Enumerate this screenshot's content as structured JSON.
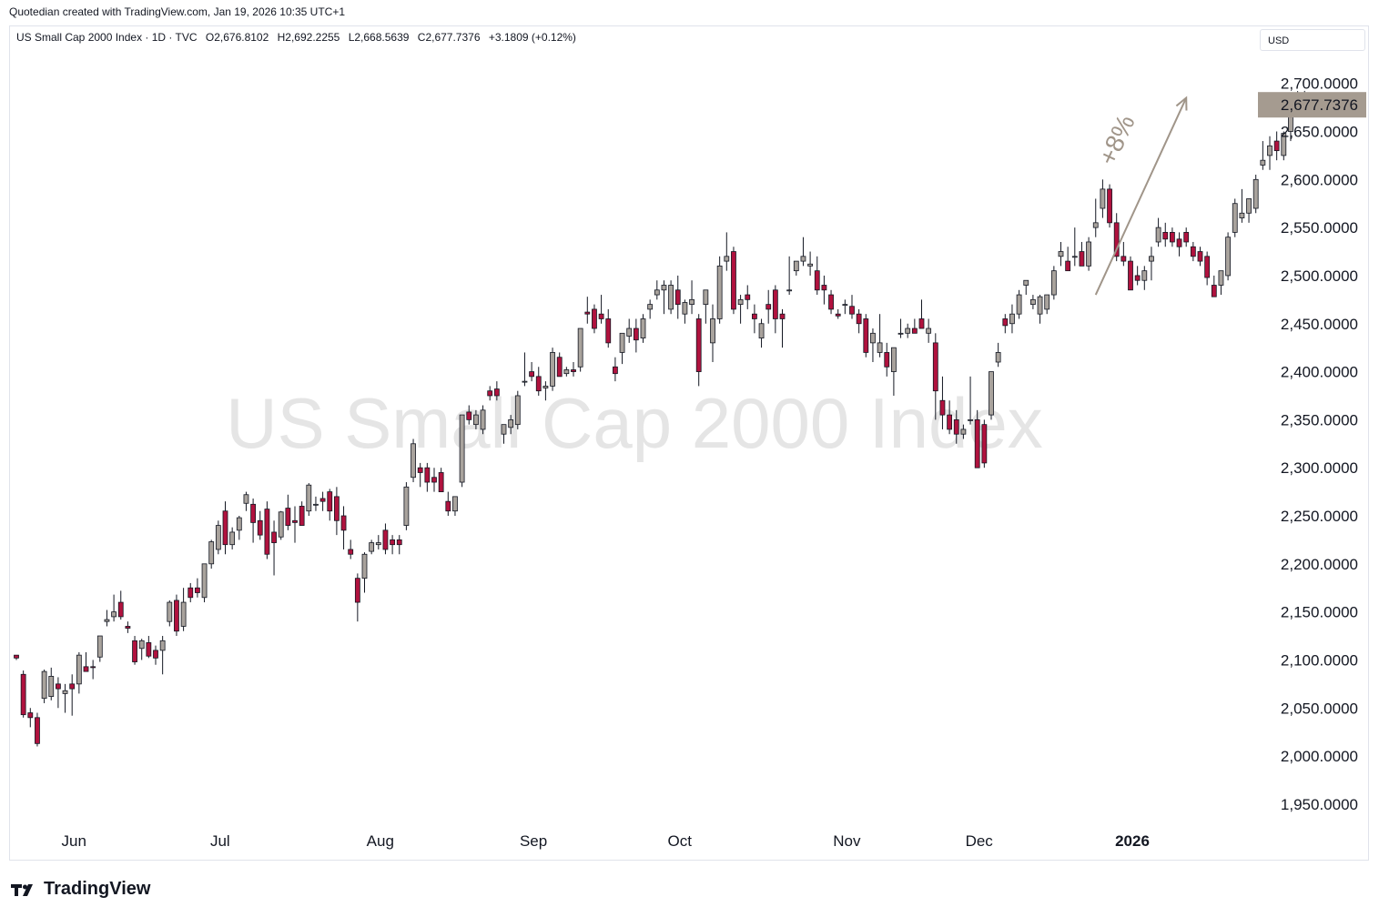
{
  "header": {
    "caption": "Quotedian created with TradingView.com, Jan 19, 2026 10:35 UTC+1"
  },
  "legend": {
    "symbol": "US Small Cap 2000 Index · 1D · TVC",
    "open": "O2,676.8102",
    "high": "H2,692.2255",
    "low": "L2,668.5639",
    "close": "C2,677.7376",
    "change": "+3.1809 (+0.12%)"
  },
  "currency": "USD",
  "footer": {
    "brand": "TradingView"
  },
  "colors": {
    "up": "#a9a39d",
    "down": "#b0123e",
    "wick": "#131722",
    "annotation": "#a09589",
    "price_tag": "#a59b90"
  },
  "chart_data": {
    "type": "candlestick",
    "watermark": "US Small Cap 2000 Index",
    "ylim": [
      1930,
      2730
    ],
    "y_ticks": [
      1950,
      2000,
      2050,
      2100,
      2150,
      2200,
      2250,
      2300,
      2350,
      2400,
      2450,
      2500,
      2550,
      2600,
      2650,
      2700
    ],
    "y_tick_labels": [
      "1,950.0000",
      "2,000.0000",
      "2,050.0000",
      "2,100.0000",
      "2,150.0000",
      "2,200.0000",
      "2,250.0000",
      "2,300.0000",
      "2,350.0000",
      "2,400.0000",
      "2,450.0000",
      "2,500.0000",
      "2,550.0000",
      "2,600.0000",
      "2,650.0000",
      "2,700.0000"
    ],
    "x_labels": [
      {
        "label": "Jun",
        "index": 8,
        "bold": false
      },
      {
        "label": "Jul",
        "index": 29,
        "bold": false
      },
      {
        "label": "Aug",
        "index": 52,
        "bold": false
      },
      {
        "label": "Sep",
        "index": 74,
        "bold": false
      },
      {
        "label": "Oct",
        "index": 95,
        "bold": false
      },
      {
        "label": "Nov",
        "index": 119,
        "bold": false
      },
      {
        "label": "Dec",
        "index": 138,
        "bold": false
      },
      {
        "label": "2026",
        "index": 160,
        "bold": true
      }
    ],
    "last_price": 2677.7376,
    "last_price_label": "2,677.7376",
    "annotation": {
      "text": "+8%",
      "from": {
        "index": 155,
        "price": 2480
      },
      "to": {
        "index": 168,
        "price": 2685
      }
    },
    "candles": [
      [
        2105,
        2105,
        2100,
        2102
      ],
      [
        2085,
        2089,
        2040,
        2043
      ],
      [
        2045,
        2050,
        2030,
        2040
      ],
      [
        2040,
        2045,
        2010,
        2013
      ],
      [
        2060,
        2090,
        2055,
        2088
      ],
      [
        2062,
        2092,
        2058,
        2083
      ],
      [
        2075,
        2082,
        2050,
        2070
      ],
      [
        2065,
        2075,
        2045,
        2068
      ],
      [
        2075,
        2085,
        2042,
        2070
      ],
      [
        2075,
        2108,
        2065,
        2105
      ],
      [
        2093,
        2108,
        2088,
        2088
      ],
      [
        2093,
        2100,
        2080,
        2092
      ],
      [
        2103,
        2125,
        2098,
        2125
      ],
      [
        2140,
        2152,
        2135,
        2142
      ],
      [
        2145,
        2168,
        2140,
        2150
      ],
      [
        2160,
        2172,
        2142,
        2145
      ],
      [
        2135,
        2140,
        2128,
        2133
      ],
      [
        2120,
        2125,
        2095,
        2098
      ],
      [
        2112,
        2122,
        2100,
        2120
      ],
      [
        2118,
        2125,
        2102,
        2104
      ],
      [
        2110,
        2115,
        2095,
        2102
      ],
      [
        2110,
        2125,
        2085,
        2120
      ],
      [
        2140,
        2162,
        2135,
        2160
      ],
      [
        2162,
        2168,
        2125,
        2130
      ],
      [
        2135,
        2175,
        2130,
        2160
      ],
      [
        2175,
        2180,
        2160,
        2165
      ],
      [
        2175,
        2185,
        2165,
        2170
      ],
      [
        2165,
        2200,
        2160,
        2200
      ],
      [
        2200,
        2225,
        2195,
        2223
      ],
      [
        2215,
        2245,
        2210,
        2240
      ],
      [
        2255,
        2265,
        2210,
        2220
      ],
      [
        2220,
        2238,
        2215,
        2233
      ],
      [
        2235,
        2250,
        2225,
        2248
      ],
      [
        2263,
        2275,
        2255,
        2272
      ],
      [
        2262,
        2268,
        2222,
        2243
      ],
      [
        2245,
        2255,
        2225,
        2230
      ],
      [
        2257,
        2265,
        2205,
        2210
      ],
      [
        2233,
        2245,
        2188,
        2222
      ],
      [
        2228,
        2255,
        2225,
        2254
      ],
      [
        2258,
        2272,
        2235,
        2240
      ],
      [
        2245,
        2260,
        2222,
        2243
      ],
      [
        2260,
        2265,
        2240,
        2240
      ],
      [
        2255,
        2284,
        2250,
        2282
      ],
      [
        2262,
        2270,
        2255,
        2262
      ],
      [
        2268,
        2275,
        2255,
        2265
      ],
      [
        2275,
        2278,
        2245,
        2255
      ],
      [
        2270,
        2280,
        2230,
        2245
      ],
      [
        2250,
        2260,
        2215,
        2235
      ],
      [
        2215,
        2225,
        2205,
        2210
      ],
      [
        2185,
        2190,
        2140,
        2160
      ],
      [
        2185,
        2212,
        2170,
        2210
      ],
      [
        2213,
        2225,
        2210,
        2222
      ],
      [
        2220,
        2230,
        2215,
        2222
      ],
      [
        2235,
        2242,
        2210,
        2215
      ],
      [
        2225,
        2230,
        2210,
        2220
      ],
      [
        2225,
        2230,
        2210,
        2220
      ],
      [
        2240,
        2285,
        2235,
        2280
      ],
      [
        2290,
        2330,
        2285,
        2325
      ],
      [
        2300,
        2305,
        2280,
        2295
      ],
      [
        2300,
        2305,
        2275,
        2285
      ],
      [
        2290,
        2300,
        2275,
        2285
      ],
      [
        2295,
        2300,
        2275,
        2275
      ],
      [
        2265,
        2275,
        2250,
        2255
      ],
      [
        2255,
        2270,
        2250,
        2270
      ],
      [
        2285,
        2355,
        2280,
        2355
      ],
      [
        2358,
        2365,
        2345,
        2350
      ],
      [
        2345,
        2360,
        2340,
        2355
      ],
      [
        2340,
        2365,
        2335,
        2360
      ],
      [
        2380,
        2385,
        2370,
        2375
      ],
      [
        2382,
        2390,
        2370,
        2375
      ],
      [
        2335,
        2345,
        2325,
        2345
      ],
      [
        2342,
        2355,
        2335,
        2350
      ],
      [
        2345,
        2380,
        2340,
        2375
      ],
      [
        2390,
        2420,
        2385,
        2390
      ],
      [
        2400,
        2410,
        2390,
        2395
      ],
      [
        2395,
        2405,
        2375,
        2380
      ],
      [
        2383,
        2390,
        2370,
        2385
      ],
      [
        2385,
        2425,
        2380,
        2420
      ],
      [
        2415,
        2420,
        2395,
        2395
      ],
      [
        2398,
        2405,
        2395,
        2402
      ],
      [
        2402,
        2410,
        2395,
        2400
      ],
      [
        2405,
        2445,
        2400,
        2445
      ],
      [
        2462,
        2478,
        2450,
        2460
      ],
      [
        2465,
        2470,
        2440,
        2445
      ],
      [
        2460,
        2480,
        2450,
        2455
      ],
      [
        2455,
        2465,
        2425,
        2430
      ],
      [
        2405,
        2415,
        2390,
        2398
      ],
      [
        2420,
        2440,
        2408,
        2440
      ],
      [
        2437,
        2455,
        2430,
        2445
      ],
      [
        2445,
        2455,
        2420,
        2433
      ],
      [
        2435,
        2460,
        2430,
        2455
      ],
      [
        2465,
        2475,
        2455,
        2470
      ],
      [
        2480,
        2495,
        2475,
        2485
      ],
      [
        2485,
        2495,
        2460,
        2490
      ],
      [
        2465,
        2495,
        2460,
        2490
      ],
      [
        2485,
        2500,
        2455,
        2470
      ],
      [
        2460,
        2475,
        2450,
        2472
      ],
      [
        2470,
        2495,
        2460,
        2475
      ],
      [
        2455,
        2460,
        2385,
        2400
      ],
      [
        2470,
        2485,
        2450,
        2485
      ],
      [
        2430,
        2470,
        2410,
        2455
      ],
      [
        2455,
        2520,
        2450,
        2510
      ],
      [
        2515,
        2545,
        2505,
        2520
      ],
      [
        2525,
        2530,
        2460,
        2465
      ],
      [
        2470,
        2480,
        2450,
        2475
      ],
      [
        2480,
        2490,
        2465,
        2475
      ],
      [
        2460,
        2470,
        2440,
        2455
      ],
      [
        2435,
        2455,
        2425,
        2450
      ],
      [
        2470,
        2485,
        2450,
        2465
      ],
      [
        2485,
        2490,
        2440,
        2455
      ],
      [
        2460,
        2465,
        2425,
        2455
      ],
      [
        2485,
        2520,
        2480,
        2485
      ],
      [
        2505,
        2515,
        2500,
        2515
      ],
      [
        2515,
        2540,
        2510,
        2520
      ],
      [
        2510,
        2525,
        2500,
        2512
      ],
      [
        2505,
        2520,
        2480,
        2485
      ],
      [
        2490,
        2500,
        2470,
        2485
      ],
      [
        2480,
        2485,
        2460,
        2465
      ],
      [
        2460,
        2465,
        2455,
        2458
      ],
      [
        2470,
        2475,
        2460,
        2470
      ],
      [
        2468,
        2480,
        2455,
        2460
      ],
      [
        2460,
        2465,
        2440,
        2450
      ],
      [
        2455,
        2460,
        2415,
        2420
      ],
      [
        2430,
        2445,
        2410,
        2440
      ],
      [
        2420,
        2460,
        2415,
        2430
      ],
      [
        2420,
        2430,
        2395,
        2405
      ],
      [
        2400,
        2420,
        2375,
        2425
      ],
      [
        2440,
        2455,
        2435,
        2440
      ],
      [
        2440,
        2450,
        2435,
        2445
      ],
      [
        2445,
        2455,
        2440,
        2440
      ],
      [
        2455,
        2475,
        2445,
        2445
      ],
      [
        2440,
        2455,
        2430,
        2445
      ],
      [
        2430,
        2440,
        2350,
        2380
      ],
      [
        2370,
        2395,
        2340,
        2355
      ],
      [
        2355,
        2370,
        2335,
        2340
      ],
      [
        2350,
        2360,
        2325,
        2335
      ],
      [
        2335,
        2345,
        2330,
        2340
      ],
      [
        2350,
        2395,
        2345,
        2350
      ],
      [
        2350,
        2360,
        2300,
        2300
      ],
      [
        2345,
        2350,
        2300,
        2305
      ],
      [
        2355,
        2400,
        2350,
        2400
      ],
      [
        2410,
        2430,
        2405,
        2420
      ],
      [
        2455,
        2460,
        2440,
        2448
      ],
      [
        2450,
        2470,
        2440,
        2460
      ],
      [
        2460,
        2485,
        2455,
        2480
      ],
      [
        2490,
        2495,
        2480,
        2495
      ],
      [
        2470,
        2480,
        2465,
        2475
      ],
      [
        2460,
        2480,
        2450,
        2478
      ],
      [
        2465,
        2480,
        2460,
        2480
      ],
      [
        2480,
        2510,
        2475,
        2505
      ],
      [
        2520,
        2535,
        2510,
        2525
      ],
      [
        2515,
        2530,
        2505,
        2505
      ],
      [
        2520,
        2550,
        2510,
        2520
      ],
      [
        2525,
        2535,
        2515,
        2510
      ],
      [
        2510,
        2540,
        2505,
        2535
      ],
      [
        2550,
        2580,
        2540,
        2555
      ],
      [
        2570,
        2600,
        2560,
        2590
      ],
      [
        2590,
        2595,
        2550,
        2555
      ],
      [
        2555,
        2565,
        2515,
        2520
      ],
      [
        2520,
        2535,
        2510,
        2515
      ],
      [
        2515,
        2520,
        2490,
        2485
      ],
      [
        2500,
        2510,
        2490,
        2495
      ],
      [
        2495,
        2510,
        2485,
        2505
      ],
      [
        2515,
        2530,
        2495,
        2520
      ],
      [
        2535,
        2560,
        2530,
        2550
      ],
      [
        2545,
        2555,
        2530,
        2538
      ],
      [
        2545,
        2550,
        2530,
        2535
      ],
      [
        2538,
        2545,
        2520,
        2530
      ],
      [
        2545,
        2550,
        2530,
        2535
      ],
      [
        2530,
        2535,
        2515,
        2520
      ],
      [
        2525,
        2530,
        2510,
        2515
      ],
      [
        2520,
        2525,
        2490,
        2498
      ],
      [
        2490,
        2500,
        2480,
        2478
      ],
      [
        2490,
        2505,
        2480,
        2505
      ],
      [
        2500,
        2545,
        2495,
        2540
      ],
      [
        2545,
        2580,
        2540,
        2575
      ],
      [
        2560,
        2590,
        2555,
        2565
      ],
      [
        2565,
        2580,
        2555,
        2580
      ],
      [
        2570,
        2605,
        2565,
        2600
      ],
      [
        2615,
        2640,
        2610,
        2620
      ],
      [
        2625,
        2645,
        2610,
        2635
      ],
      [
        2640,
        2650,
        2620,
        2630
      ],
      [
        2625,
        2650,
        2620,
        2648
      ],
      [
        2650,
        2670,
        2640,
        2665
      ],
      [
        2670,
        2692,
        2665,
        2675
      ],
      [
        2676.8102,
        2692.2255,
        2668.5639,
        2677.7376
      ]
    ]
  }
}
